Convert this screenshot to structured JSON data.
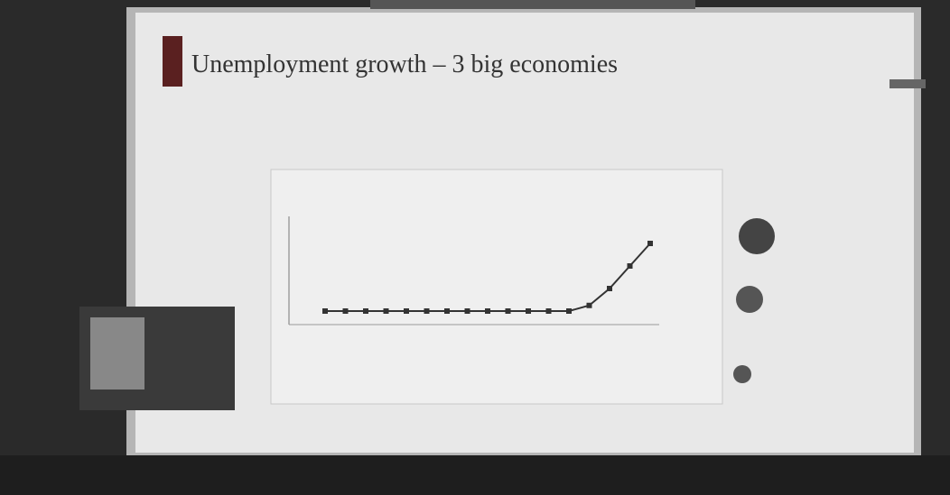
{
  "slide": {
    "title": "Unemployment growth – 3 big economies"
  },
  "chart_data": {
    "type": "line",
    "values": [
      2,
      2,
      2,
      2,
      2,
      2,
      2,
      2,
      2,
      2,
      2,
      2,
      2,
      2.5,
      4,
      6,
      8
    ],
    "color": "#333333",
    "ylim": [
      0,
      10
    ]
  }
}
